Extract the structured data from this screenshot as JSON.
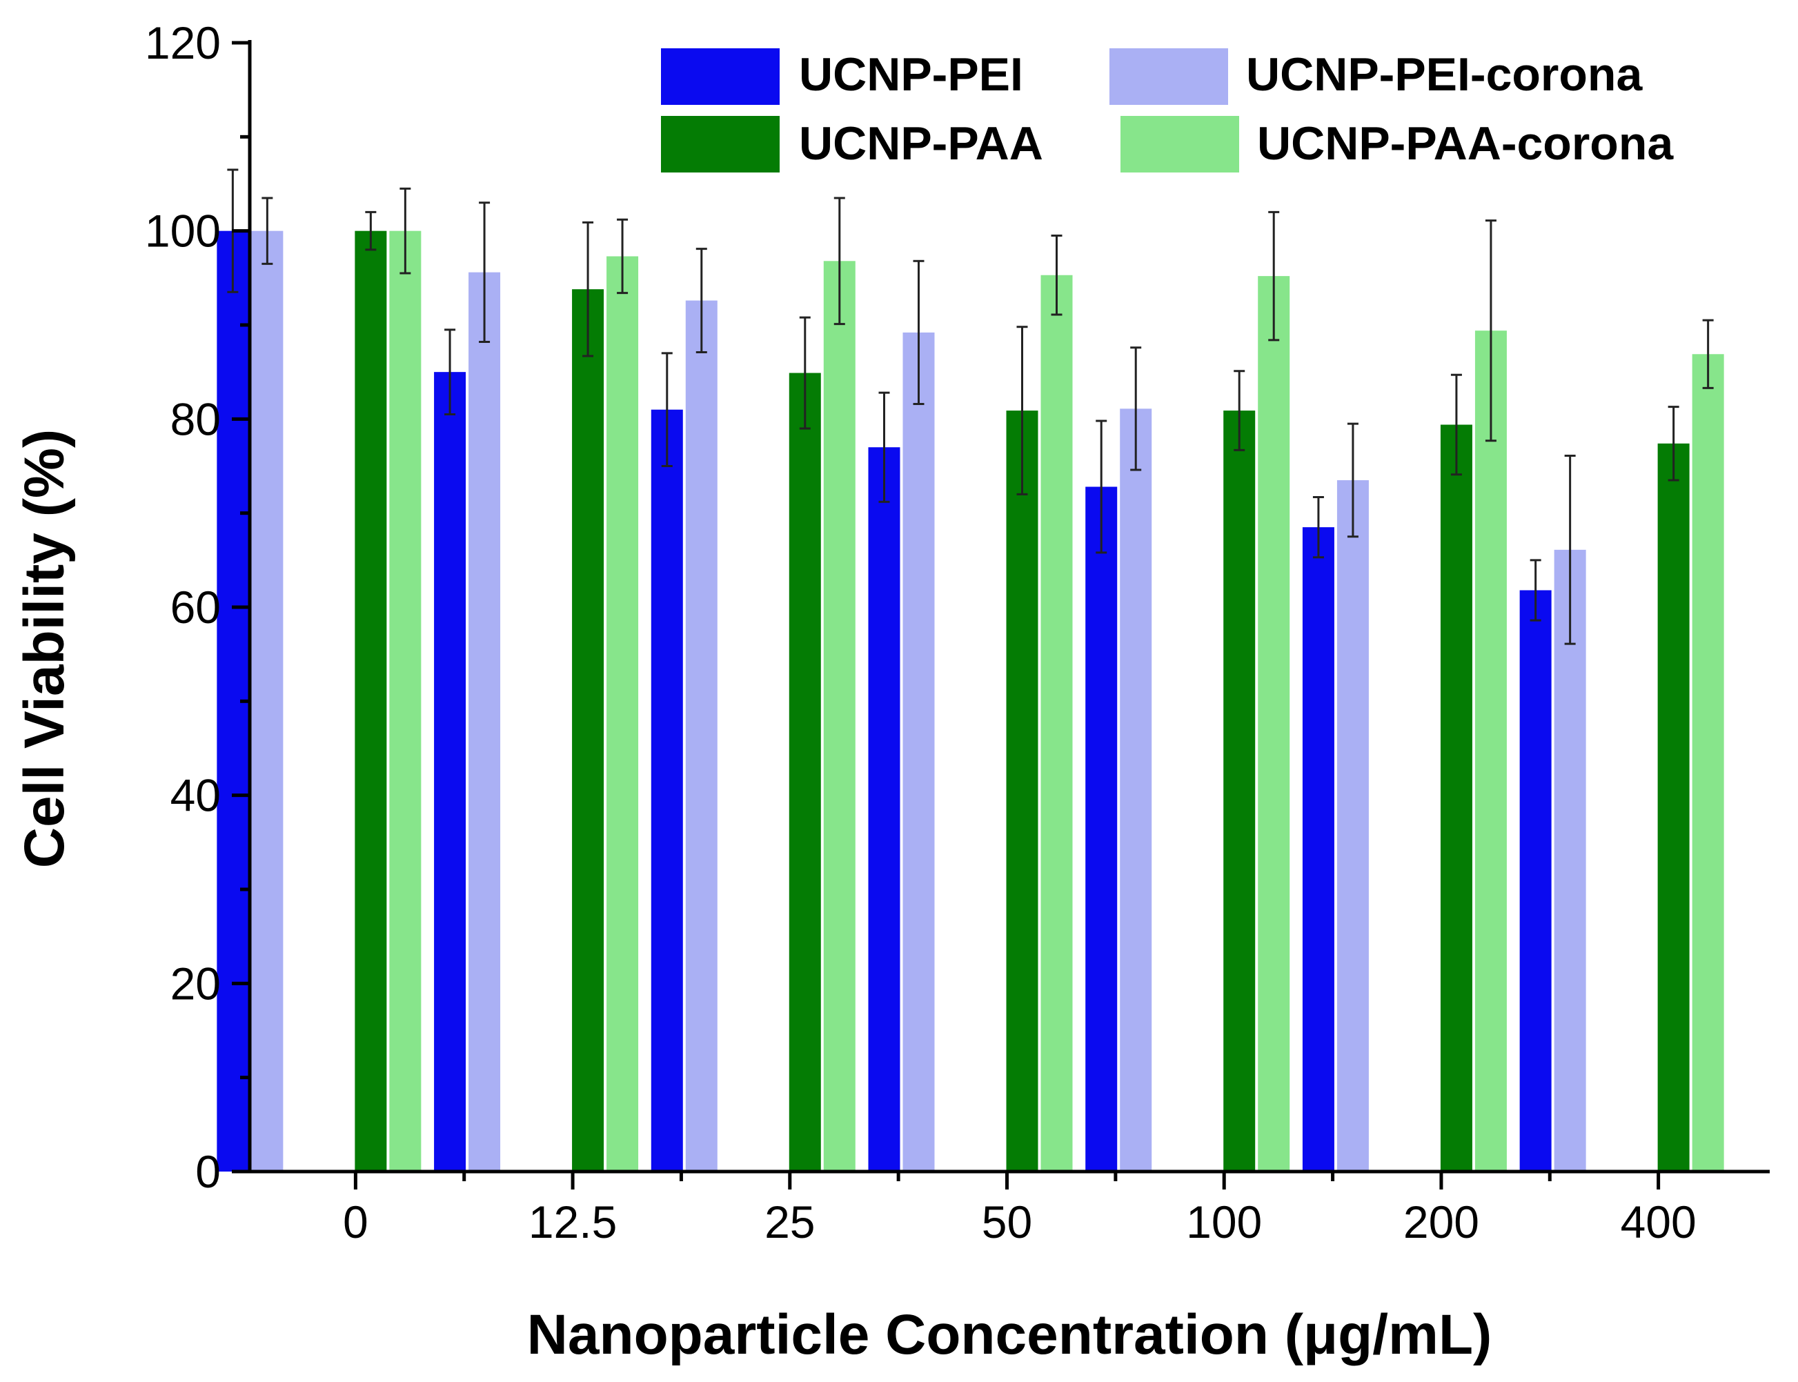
{
  "chart_data": {
    "type": "bar",
    "title": "",
    "xlabel": "Nanoparticle Concentration (μg/mL)",
    "ylabel": "Cell Viability (%)",
    "ylim": [
      0,
      120
    ],
    "yticks": [
      0,
      20,
      40,
      60,
      80,
      100,
      120
    ],
    "categories": [
      "0",
      "12.5",
      "25",
      "50",
      "100",
      "200",
      "400"
    ],
    "legend_position": "top-right",
    "series": [
      {
        "name": "UCNP-PEI",
        "color": "#0a0af0",
        "values": [
          100,
          85,
          81,
          77,
          72.8,
          68.5,
          61.8
        ],
        "errors": [
          6.5,
          4.5,
          6,
          5.8,
          7,
          3.2,
          3.2
        ]
      },
      {
        "name": "UCNP-PEI-corona",
        "color": "#aab0f4",
        "values": [
          100,
          95.6,
          92.6,
          89.2,
          81.1,
          73.5,
          66.1
        ],
        "errors": [
          3.5,
          7.4,
          5.5,
          7.6,
          6.5,
          6,
          10
        ]
      },
      {
        "name": "UCNP-PAA",
        "color": "#047c04",
        "values": [
          100,
          93.8,
          84.9,
          80.9,
          80.9,
          79.4,
          77.4
        ],
        "errors": [
          2,
          7.1,
          5.9,
          8.9,
          4.2,
          5.3,
          3.9
        ]
      },
      {
        "name": "UCNP-PAA-corona",
        "color": "#87e58b",
        "values": [
          100,
          97.3,
          96.8,
          95.3,
          95.2,
          89.4,
          86.9
        ],
        "errors": [
          4.5,
          3.9,
          6.7,
          4.2,
          6.8,
          11.7,
          3.6
        ]
      }
    ]
  }
}
